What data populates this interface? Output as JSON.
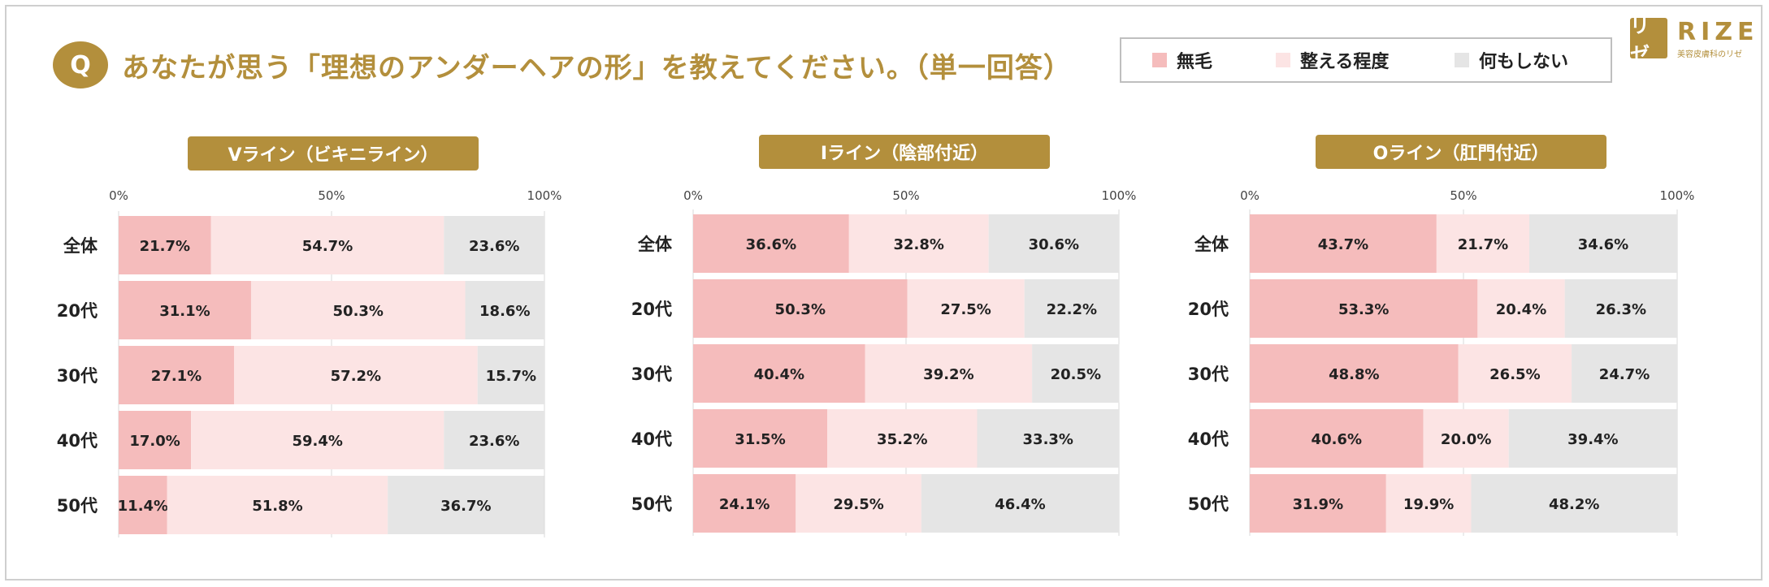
{
  "header": {
    "q_badge": "Q",
    "question": "あなたが思う「理想のアンダーヘアの形」を教えてください。（単一回答）"
  },
  "legend": [
    {
      "label": "無毛",
      "color": "#f5bcbc"
    },
    {
      "label": "整える程度",
      "color": "#fce4e4"
    },
    {
      "label": "何もしない",
      "color": "#e5e5e5"
    }
  ],
  "logo": {
    "mark": "リゼ",
    "name": "RIZE",
    "sub": "美容皮膚科のリゼ"
  },
  "chart_data": [
    {
      "type": "bar",
      "orientation": "horizontal",
      "stacked": true,
      "title": "Vライン（ビキニライン）",
      "xticks": [
        "0%",
        "50%",
        "100%"
      ],
      "xlim": [
        0,
        100
      ],
      "categories": [
        "全体",
        "20代",
        "30代",
        "40代",
        "50代"
      ],
      "series": [
        {
          "name": "無毛",
          "values": [
            21.7,
            31.1,
            27.1,
            17.0,
            11.4
          ],
          "labels": [
            "21.7%",
            "31.1%",
            "27.1%",
            "17.0%",
            "11.4%"
          ]
        },
        {
          "name": "整える程度",
          "values": [
            54.7,
            50.3,
            57.2,
            59.4,
            51.8
          ],
          "labels": [
            "54.7%",
            "50.3%",
            "57.2%",
            "59.4%",
            "51.8%"
          ]
        },
        {
          "name": "何もしない",
          "values": [
            23.6,
            18.6,
            15.7,
            23.6,
            36.7
          ],
          "labels": [
            "23.6%",
            "18.6%",
            "15.7%",
            "23.6%",
            "36.7%"
          ]
        }
      ]
    },
    {
      "type": "bar",
      "orientation": "horizontal",
      "stacked": true,
      "title": "Iライン（陰部付近）",
      "xticks": [
        "0%",
        "50%",
        "100%"
      ],
      "xlim": [
        0,
        100
      ],
      "categories": [
        "全体",
        "20代",
        "30代",
        "40代",
        "50代"
      ],
      "series": [
        {
          "name": "無毛",
          "values": [
            36.6,
            50.3,
            40.4,
            31.5,
            24.1
          ],
          "labels": [
            "36.6%",
            "50.3%",
            "40.4%",
            "31.5%",
            "24.1%"
          ]
        },
        {
          "name": "整える程度",
          "values": [
            32.8,
            27.5,
            39.2,
            35.2,
            29.5
          ],
          "labels": [
            "32.8%",
            "27.5%",
            "39.2%",
            "35.2%",
            "29.5%"
          ]
        },
        {
          "name": "何もしない",
          "values": [
            30.6,
            22.2,
            20.5,
            33.3,
            46.4
          ],
          "labels": [
            "30.6%",
            "22.2%",
            "20.5%",
            "33.3%",
            "46.4%"
          ]
        }
      ]
    },
    {
      "type": "bar",
      "orientation": "horizontal",
      "stacked": true,
      "title": "Oライン（肛門付近）",
      "xticks": [
        "0%",
        "50%",
        "100%"
      ],
      "xlim": [
        0,
        100
      ],
      "categories": [
        "全体",
        "20代",
        "30代",
        "40代",
        "50代"
      ],
      "series": [
        {
          "name": "無毛",
          "values": [
            43.7,
            53.3,
            48.8,
            40.6,
            31.9
          ],
          "labels": [
            "43.7%",
            "53.3%",
            "48.8%",
            "40.6%",
            "31.9%"
          ]
        },
        {
          "name": "整える程度",
          "values": [
            21.7,
            20.4,
            26.5,
            20.0,
            19.9
          ],
          "labels": [
            "21.7%",
            "20.4%",
            "26.5%",
            "20.0%",
            "19.9%"
          ]
        },
        {
          "name": "何もしない",
          "values": [
            34.6,
            26.3,
            24.7,
            39.4,
            48.2
          ],
          "labels": [
            "34.6%",
            "26.3%",
            "24.7%",
            "39.4%",
            "48.2%"
          ]
        }
      ]
    }
  ]
}
